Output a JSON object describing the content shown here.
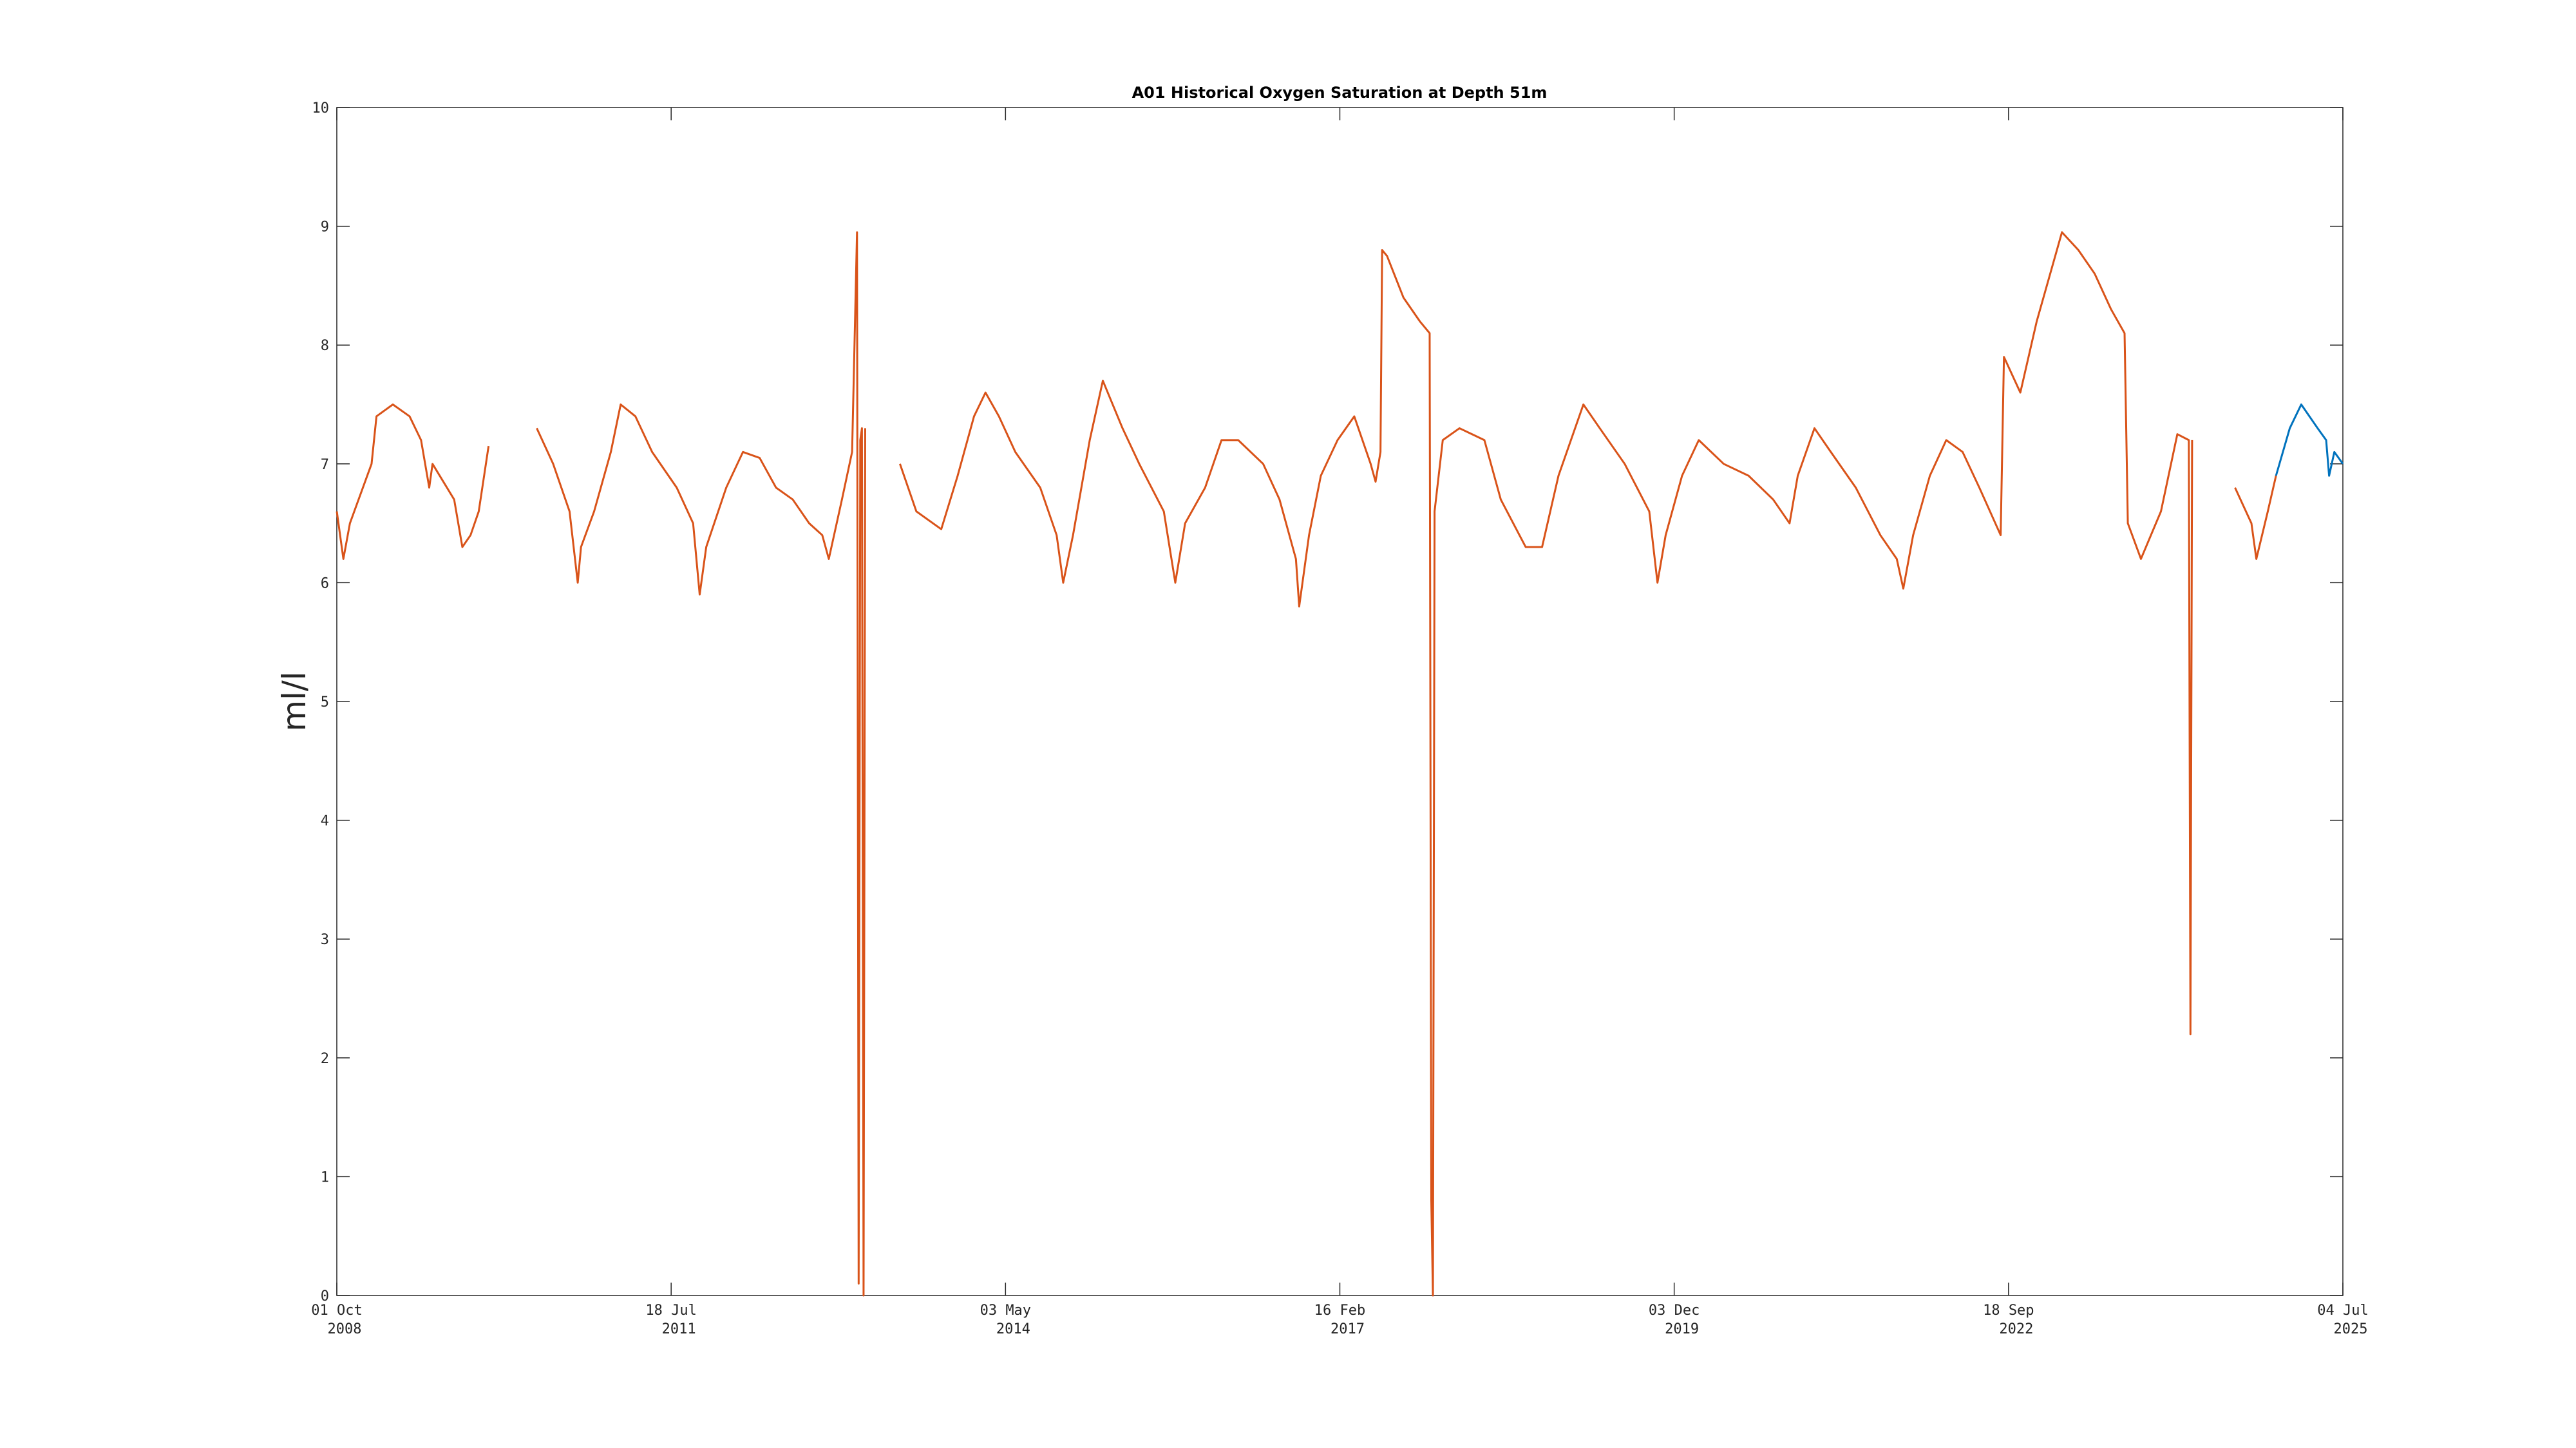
{
  "chart_data": {
    "type": "line",
    "title": "A01 Historical Oxygen Saturation at Depth 51m",
    "y_label": "ml/l",
    "xlim": [
      "2008-10-01",
      "2025-07-04"
    ],
    "xticks": [
      {
        "value": "2008-10-01",
        "label": [
          "01 Oct",
          "2008"
        ]
      },
      {
        "value": "2011-07-18",
        "label": [
          "18 Jul",
          "2011"
        ]
      },
      {
        "value": "2014-05-03",
        "label": [
          "03 May",
          "2014"
        ]
      },
      {
        "value": "2017-02-16",
        "label": [
          "16 Feb",
          "2017"
        ]
      },
      {
        "value": "2019-12-03",
        "label": [
          "03 Dec",
          "2019"
        ]
      },
      {
        "value": "2022-09-18",
        "label": [
          "18 Sep",
          "2022"
        ]
      },
      {
        "value": "2025-07-04",
        "label": [
          "04 Jul",
          "2025"
        ]
      }
    ],
    "ylim": [
      0,
      10
    ],
    "yticks": [
      0,
      1,
      2,
      3,
      4,
      5,
      6,
      7,
      8,
      9,
      10
    ],
    "grid": false,
    "series": [
      {
        "color": "#d95319",
        "x": [
          "2008-10-01",
          "2008-10-21",
          "2008-11-10",
          "2009-01-15",
          "2009-01-30",
          "2009-03-21",
          "2009-05-11",
          "2009-06-15",
          "2009-07-10",
          "2009-07-20",
          "2009-09-24",
          "2009-10-19",
          "2009-11-13",
          "2009-12-08",
          "2010-01-07",
          "2010-03-01",
          "2010-06-03",
          "2010-07-23",
          "2010-09-11",
          "2010-10-06",
          "2010-10-16",
          "2010-11-25",
          "2011-01-15",
          "2011-02-14",
          "2011-03-31",
          "2011-05-21",
          "2011-08-04",
          "2011-09-23",
          "2011-10-13",
          "2011-11-02",
          "2012-01-02",
          "2012-02-22",
          "2012-04-13",
          "2012-06-02",
          "2012-07-23",
          "2012-09-11",
          "2012-10-21",
          "2012-11-10",
          "2012-12-20",
          "2013-01-20",
          "2013-02-04",
          "2013-02-09",
          "2013-02-14",
          "2013-02-19",
          "2013-02-24",
          "2013-03-01",
          "2013-06-01",
          "2013-06-15",
          "2013-08-04",
          "2013-10-19",
          "2013-12-08",
          "2014-01-27",
          "2014-03-03",
          "2014-04-13",
          "2014-06-02",
          "2014-08-17",
          "2014-10-06",
          "2014-10-26",
          "2014-11-25",
          "2015-01-15",
          "2015-02-24",
          "2015-04-25",
          "2015-06-15",
          "2015-08-29",
          "2015-10-03",
          "2015-11-02",
          "2016-01-02",
          "2016-02-21",
          "2016-04-12",
          "2016-06-27",
          "2016-08-16",
          "2016-10-05",
          "2016-10-15",
          "2016-11-14",
          "2016-12-20",
          "2017-02-09",
          "2017-04-01",
          "2017-05-21",
          "2017-06-05",
          "2017-06-20",
          "2017-06-25",
          "2017-07-10",
          "2017-08-29",
          "2017-10-18",
          "2017-11-17",
          "2017-11-22",
          "2017-11-27",
          "2017-12-02",
          "2017-12-27",
          "2018-02-16",
          "2018-05-03",
          "2018-06-22",
          "2018-09-06",
          "2018-10-26",
          "2018-12-15",
          "2019-03-01",
          "2019-04-20",
          "2019-07-05",
          "2019-09-18",
          "2019-10-13",
          "2019-11-07",
          "2019-12-27",
          "2020-02-16",
          "2020-05-02",
          "2020-07-17",
          "2020-09-30",
          "2020-11-19",
          "2020-12-14",
          "2021-02-03",
          "2021-03-25",
          "2021-06-09",
          "2021-08-23",
          "2021-10-12",
          "2021-11-01",
          "2021-12-01",
          "2022-01-21",
          "2022-03-12",
          "2022-05-01",
          "2022-06-21",
          "2022-08-25",
          "2022-09-04",
          "2022-10-24",
          "2022-12-13",
          "2023-02-28",
          "2023-04-19",
          "2023-06-08",
          "2023-07-28",
          "2023-09-07",
          "2023-09-17",
          "2023-10-27",
          "2023-12-27",
          "2024-02-15",
          "2024-03-21",
          "2024-03-26",
          "2024-03-31",
          "2024-06-01",
          "2024-08-09",
          "2024-09-28",
          "2024-10-13",
          "2024-11-17",
          "2024-12-12"
        ],
        "values": [
          6.6,
          6.2,
          6.5,
          7.0,
          7.4,
          7.5,
          7.4,
          7.2,
          6.8,
          7.0,
          6.7,
          6.3,
          6.4,
          6.6,
          7.15,
          null,
          7.3,
          7.0,
          6.6,
          6.0,
          6.3,
          6.6,
          7.1,
          7.5,
          7.4,
          7.1,
          6.8,
          6.5,
          5.9,
          6.3,
          6.8,
          7.1,
          7.05,
          6.8,
          6.7,
          6.5,
          6.4,
          6.2,
          6.7,
          7.1,
          8.95,
          0.1,
          7.2,
          7.3,
          0.0,
          7.3,
          null,
          7.0,
          6.6,
          6.45,
          6.9,
          7.4,
          7.6,
          7.4,
          7.1,
          6.8,
          6.4,
          6.0,
          6.4,
          7.2,
          7.7,
          7.3,
          7.0,
          6.6,
          6.0,
          6.5,
          6.8,
          7.2,
          7.2,
          7.0,
          6.7,
          6.2,
          5.8,
          6.4,
          6.9,
          7.2,
          7.4,
          7.0,
          6.85,
          7.1,
          8.8,
          8.75,
          8.4,
          8.2,
          8.1,
          0.8,
          0.0,
          6.6,
          7.2,
          7.3,
          7.2,
          6.7,
          6.3,
          6.3,
          6.9,
          7.5,
          7.3,
          7.0,
          6.6,
          6.0,
          6.4,
          6.9,
          7.2,
          7.0,
          6.9,
          6.7,
          6.5,
          6.9,
          7.3,
          7.1,
          6.8,
          6.4,
          6.2,
          5.95,
          6.4,
          6.9,
          7.2,
          7.1,
          6.8,
          6.4,
          7.9,
          7.6,
          8.2,
          8.95,
          8.8,
          8.6,
          8.3,
          8.1,
          6.5,
          6.2,
          6.6,
          7.25,
          7.2,
          2.2,
          7.2,
          null,
          6.8,
          6.5,
          6.2,
          6.6,
          6.9
        ]
      },
      {
        "color": "#0072bd",
        "x": [
          "2024-12-12",
          "2025-01-23",
          "2025-02-27",
          "2025-04-18",
          "2025-05-14",
          "2025-05-23",
          "2025-06-08",
          "2025-07-04"
        ],
        "values": [
          6.9,
          7.3,
          7.5,
          7.3,
          7.2,
          6.9,
          7.1,
          7.0
        ]
      }
    ]
  }
}
